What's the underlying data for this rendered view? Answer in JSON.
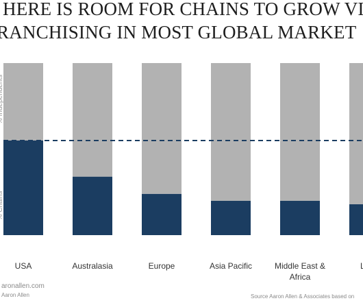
{
  "title_lines": [
    "HERE IS ROOM FOR CHAINS TO GROW VI",
    "RANCHISING IN MOST GLOBAL MARKET"
  ],
  "footer": {
    "site": "aronallen.com",
    "author": "Aaron Allen",
    "source": "Source Aaron Allen & Associates based on"
  },
  "colors": {
    "chains": "#1b3d61",
    "independents": "#b2b2b2",
    "dashed_line": "#1b3d61"
  },
  "chart_data": {
    "type": "bar",
    "stacked": true,
    "percent": true,
    "categories": [
      "USA",
      "Australasia",
      "Europe",
      "Asia Pacific",
      "Middle East & Africa",
      "Latin"
    ],
    "series": [
      {
        "name": "% Chains",
        "values": [
          55,
          34,
          24,
          20,
          20,
          18
        ]
      },
      {
        "name": "% Independents",
        "values": [
          45,
          66,
          76,
          80,
          80,
          82
        ]
      }
    ],
    "reference_line": {
      "value": 55,
      "style": "dashed"
    },
    "ylim": [
      0,
      100
    ],
    "y_axis_labels_partial": [
      "% Chains",
      "% Independents"
    ]
  }
}
